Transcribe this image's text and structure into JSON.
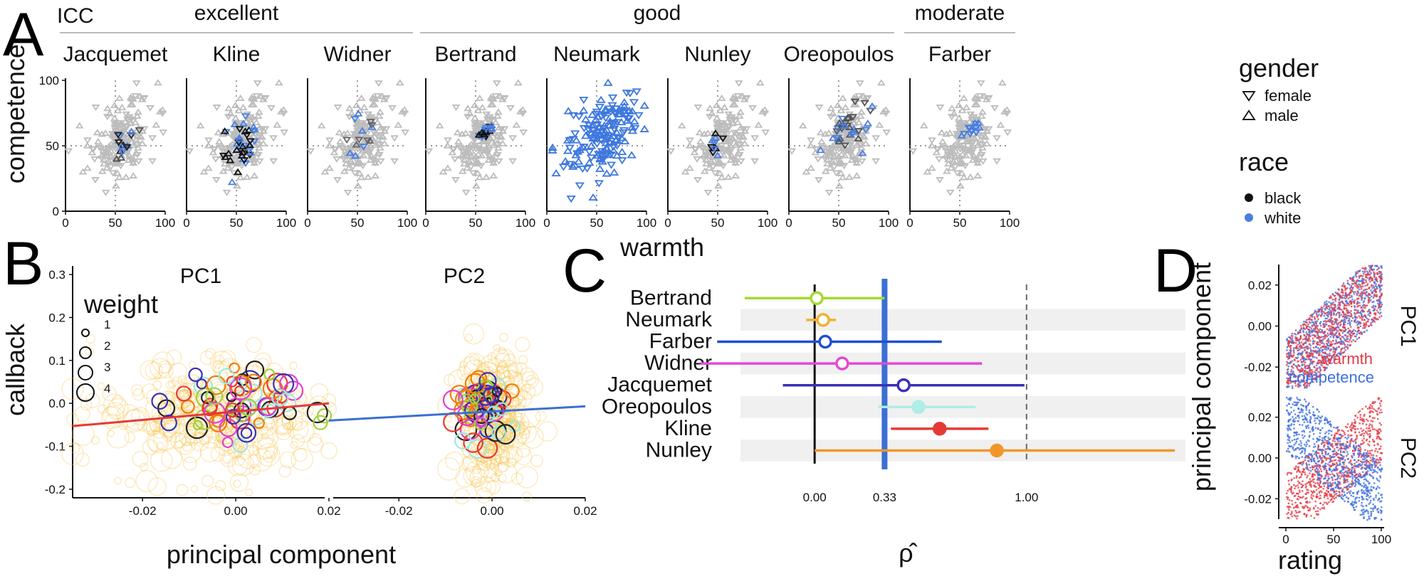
{
  "chart_data": [
    {
      "panel": "A",
      "type": "scatter",
      "corner_label": "ICC",
      "groups": [
        {
          "name": "excellent",
          "studies": [
            "Jacquemet",
            "Kline",
            "Widner"
          ]
        },
        {
          "name": "good",
          "studies": [
            "Bertrand",
            "Neumark",
            "Nunley",
            "Oreopoulos"
          ]
        },
        {
          "name": "moderate",
          "studies": [
            "Farber"
          ]
        }
      ],
      "facets": [
        "Jacquemet",
        "Kline",
        "Widner",
        "Bertrand",
        "Neumark",
        "Nunley",
        "Oreopoulos",
        "Farber"
      ],
      "xlabel": "warmth",
      "ylabel": "competence",
      "xlim": [
        0,
        100
      ],
      "ylim": [
        0,
        100
      ],
      "xticks": [
        "0",
        "50",
        "100"
      ],
      "yticks": [
        "0",
        "50",
        "100"
      ],
      "reference_lines": {
        "x": 50,
        "y": 50
      },
      "background_color": "#bdbdbd",
      "highlight": {
        "Jacquemet": {
          "center": [
            60,
            55
          ],
          "spread": [
            7,
            6
          ],
          "n": 16,
          "colors": [
            "#222222",
            "#555555",
            "#4a7fe0"
          ]
        },
        "Kline": {
          "center": [
            55,
            52
          ],
          "spread": [
            9,
            8
          ],
          "n": 40,
          "colors": [
            "#111111",
            "#4a7fe0"
          ]
        },
        "Widner": {
          "center": [
            52,
            55
          ],
          "spread": [
            12,
            9
          ],
          "n": 14,
          "colors": [
            "#666666",
            "#4a7fe0"
          ]
        },
        "Bertrand": {
          "center": [
            60,
            61
          ],
          "spread": [
            4,
            2
          ],
          "n": 24,
          "colors": [
            "#111111",
            "#4a7fe0"
          ]
        },
        "Neumark": {
          "center": [
            57,
            59
          ],
          "spread": [
            18,
            15
          ],
          "n": 170,
          "colors": [
            "#3e78de"
          ]
        },
        "Nunley": {
          "center": [
            48,
            53
          ],
          "spread": [
            4,
            6
          ],
          "n": 10,
          "colors": [
            "#111111",
            "#4a7fe0"
          ]
        },
        "Oreopoulos": {
          "center": [
            60,
            63
          ],
          "spread": [
            10,
            8
          ],
          "n": 35,
          "colors": [
            "#555555",
            "#4a7fe0"
          ]
        },
        "Farber": {
          "center": [
            61,
            62
          ],
          "spread": [
            5,
            2
          ],
          "n": 14,
          "colors": [
            "#4a7fe0"
          ]
        }
      },
      "legend_gender": {
        "title": "gender",
        "items": [
          "female",
          "male"
        ]
      },
      "legend_race": {
        "title": "race",
        "items": [
          {
            "label": "black",
            "color": "#111111"
          },
          {
            "label": "white",
            "color": "#4a7fe0"
          }
        ]
      }
    },
    {
      "panel": "B",
      "type": "scatter",
      "facets": [
        "PC1",
        "PC2"
      ],
      "xlabel": "principal component",
      "ylabel": "callback",
      "xlim": [
        -0.035,
        0.02
      ],
      "ylim": [
        -0.22,
        0.32
      ],
      "xticks": [
        "-0.02",
        "0.00",
        "0.02"
      ],
      "yticks": [
        "-0.2",
        "-0.1",
        "0.0",
        "0.1",
        "0.2",
        "0.3"
      ],
      "weight_legend": {
        "title": "weight",
        "items": [
          "1",
          "2",
          "3",
          "4"
        ]
      },
      "trend_lines": [
        {
          "facet": "PC1",
          "color": "#e53935",
          "x": [
            -0.035,
            0.02
          ],
          "y": [
            -0.053,
            0.0
          ]
        },
        {
          "facet": "PC2",
          "color": "#3b6fd4",
          "x": [
            -0.035,
            0.02
          ],
          "y": [
            -0.04,
            -0.007
          ]
        }
      ],
      "background_points": {
        "color": "#f5c24a",
        "n": 320
      },
      "highlight_colors": [
        "#e040d0",
        "#e53935",
        "#f57c00",
        "#9ee8e0",
        "#3a2fb8",
        "#222222",
        "#a0d040"
      ]
    },
    {
      "panel": "C",
      "type": "forest",
      "xlabel": "ρ̂",
      "xticks": [
        "0.00",
        "0.33",
        "1.00"
      ],
      "xlim": [
        -0.35,
        1.75
      ],
      "reference_mean": 0.33,
      "reference_color": "#3b6fd4",
      "rows": [
        {
          "study": "Bertrand",
          "estimate": 0.01,
          "lo": -0.33,
          "hi": 0.33,
          "color": "#a6d832",
          "filled": false
        },
        {
          "study": "Neumark",
          "estimate": 0.04,
          "lo": -0.04,
          "hi": 0.1,
          "color": "#f2b12c",
          "filled": false
        },
        {
          "study": "Farber",
          "estimate": 0.05,
          "lo": -0.46,
          "hi": 0.6,
          "color": "#1f4fd0",
          "filled": false
        },
        {
          "study": "Widner",
          "estimate": 0.13,
          "lo": -0.54,
          "hi": 0.79,
          "color": "#e24ad6",
          "filled": false
        },
        {
          "study": "Jacquemet",
          "estimate": 0.42,
          "lo": -0.15,
          "hi": 0.99,
          "color": "#3a2fb8",
          "filled": false
        },
        {
          "study": "Oreopoulos",
          "estimate": 0.49,
          "lo": 0.3,
          "hi": 0.76,
          "color": "#aeeee4",
          "filled": true
        },
        {
          "study": "Kline",
          "estimate": 0.59,
          "lo": 0.36,
          "hi": 0.82,
          "color": "#e53935",
          "filled": true
        },
        {
          "study": "Nunley",
          "estimate": 0.86,
          "lo": 0.0,
          "hi": 1.7,
          "color": "#f2962c",
          "filled": true
        }
      ]
    },
    {
      "panel": "D",
      "type": "scatter",
      "facets": [
        "PC1",
        "PC2"
      ],
      "xlabel": "rating",
      "ylabel": "principal component",
      "xlim": [
        0,
        100
      ],
      "ylim": [
        -0.03,
        0.03
      ],
      "xticks": [
        "0",
        "50",
        "100"
      ],
      "yticks": [
        "0.02",
        "0.00",
        "-0.02"
      ],
      "series": [
        {
          "name": "warmth",
          "color": "#e53945"
        },
        {
          "name": "competence",
          "color": "#3f6fe0"
        }
      ]
    }
  ]
}
